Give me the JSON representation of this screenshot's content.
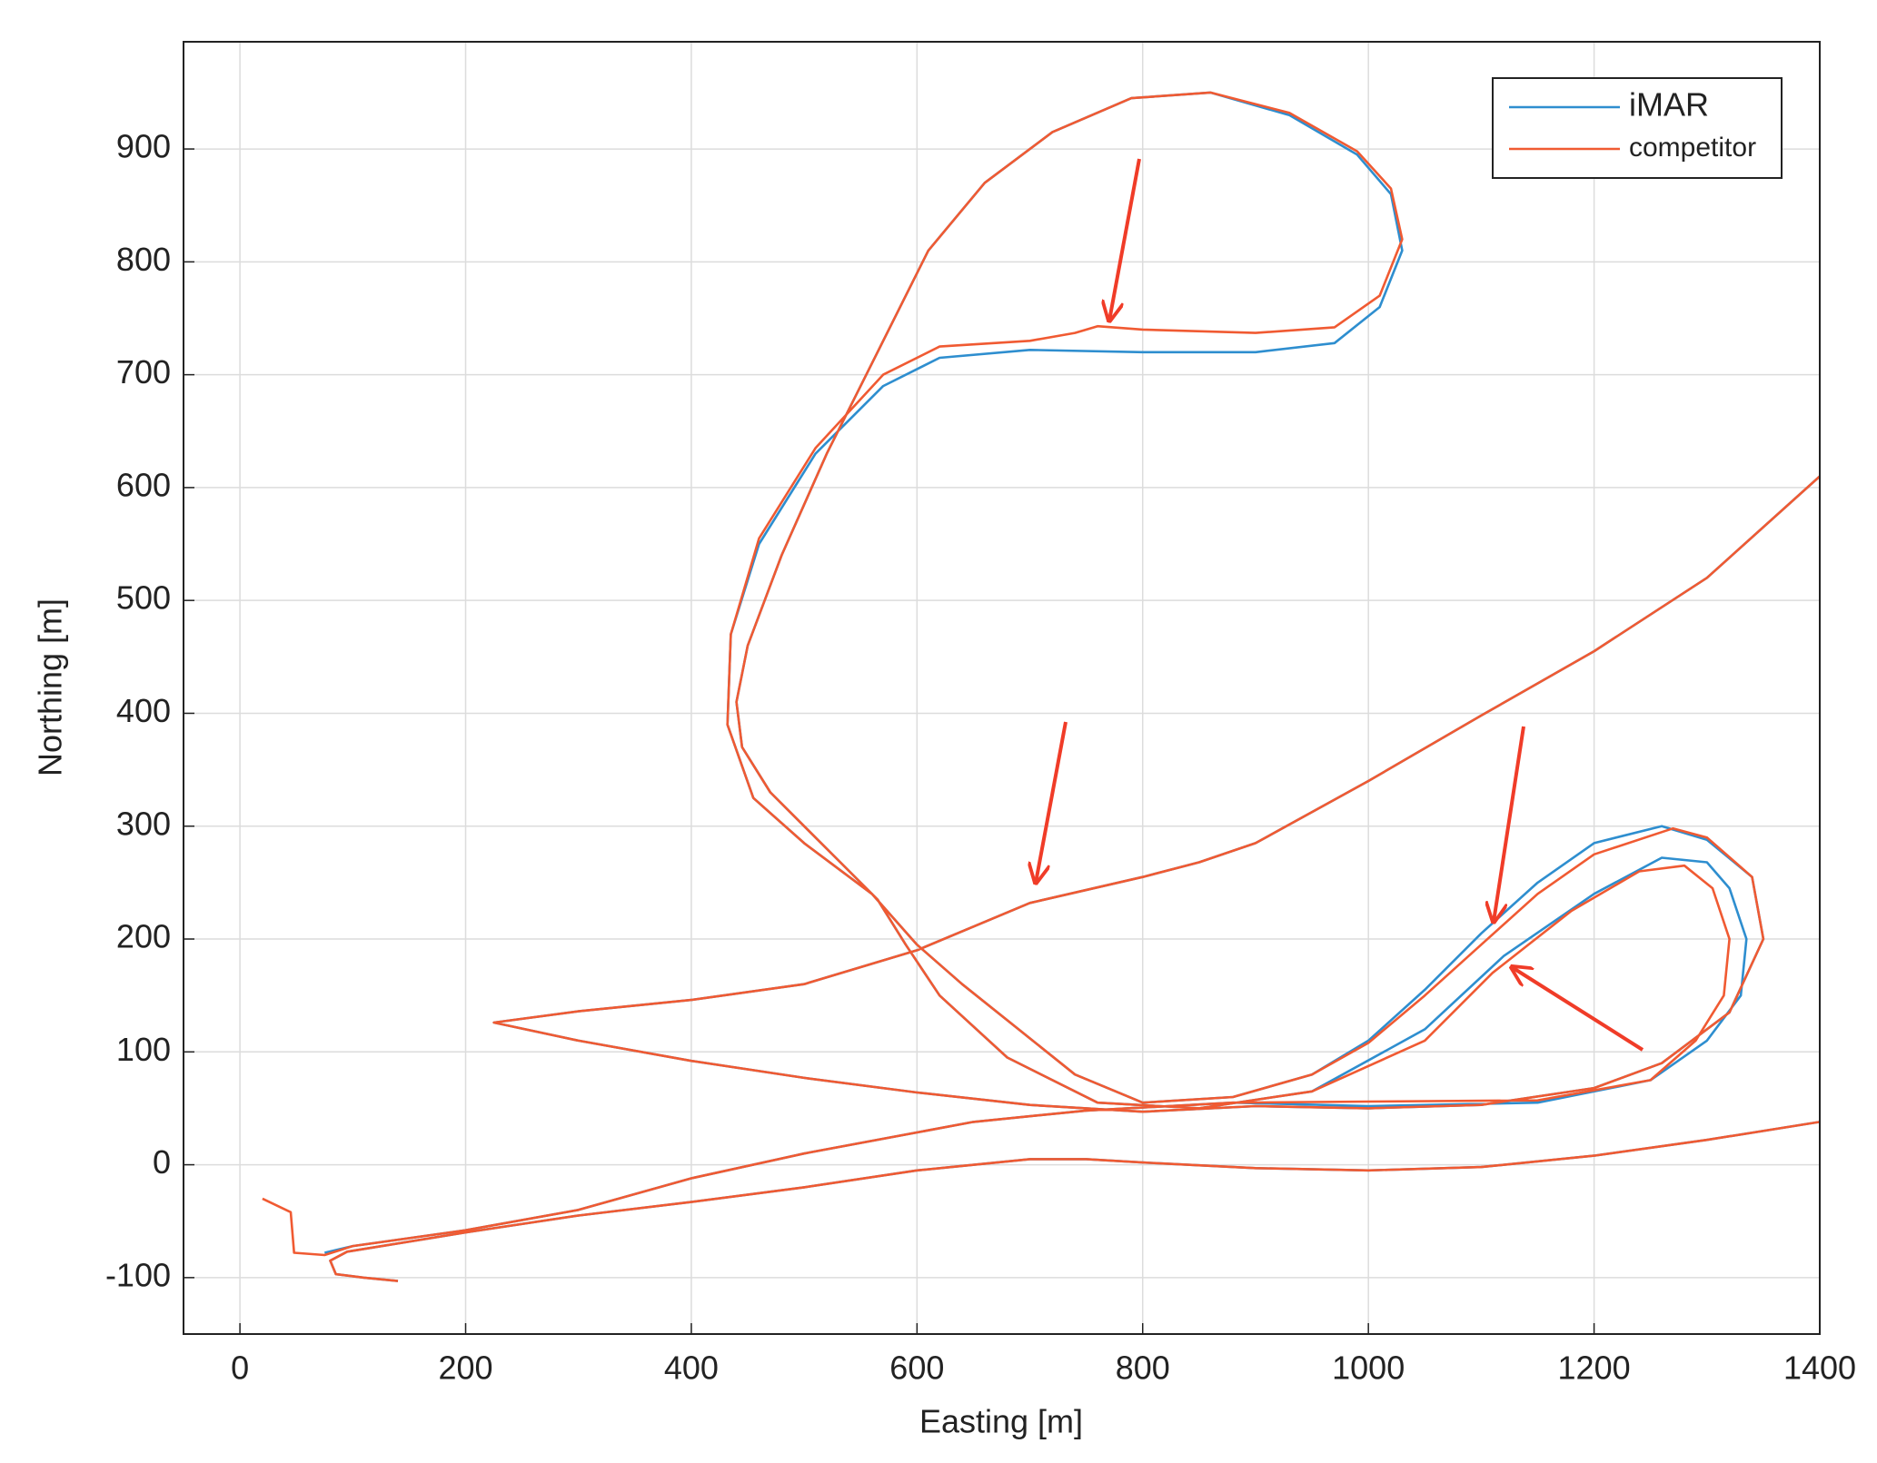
{
  "chart_data": {
    "type": "line",
    "xlabel": "Easting [m]",
    "ylabel": "Northing [m]",
    "xlim": [
      -50,
      1400
    ],
    "ylim": [
      -150,
      995
    ],
    "xticks": [
      0,
      200,
      400,
      600,
      800,
      1000,
      1200,
      1400
    ],
    "yticks": [
      -100,
      0,
      100,
      200,
      300,
      400,
      500,
      600,
      700,
      800,
      900
    ],
    "grid": true,
    "legend": "upper right",
    "series": [
      {
        "name": "iMAR",
        "color": "#2e8ecf",
        "x": [
          140,
          110,
          85,
          80,
          95,
          200,
          300,
          400,
          500,
          600,
          700,
          750,
          800,
          900,
          1000,
          1100,
          1200,
          1300,
          1400,
          null,
          1400,
          1300,
          1200,
          1100,
          1000,
          900,
          850,
          800,
          700,
          600,
          500,
          400,
          300,
          225,
          300,
          400,
          500,
          600,
          700,
          800,
          900,
          1000,
          1100,
          1200,
          1260,
          1320,
          1350,
          1340,
          1300,
          1260,
          1200,
          1150,
          1100,
          1050,
          1000,
          950,
          880,
          800,
          740,
          690,
          640,
          600,
          560,
          500,
          455,
          432,
          435,
          460,
          510,
          570,
          620,
          700,
          800,
          900,
          970,
          1010,
          1030,
          1020,
          990,
          930,
          860,
          790,
          720,
          660,
          610,
          565,
          520,
          480,
          450,
          440,
          445,
          470,
          530,
          565,
          590,
          620,
          680,
          760,
          850,
          950,
          1050,
          1120,
          1200,
          1260,
          1300,
          1320,
          1335,
          1330,
          1300,
          1250,
          1150,
          1000,
          880,
          750,
          650,
          500,
          400,
          300,
          200,
          100,
          75
        ],
        "y": [
          -103,
          -100,
          -97,
          -85,
          -77,
          -60,
          -45,
          -33,
          -20,
          -5,
          5,
          5,
          2,
          -3,
          -5,
          -2,
          8,
          22,
          38,
          null,
          610,
          520,
          455,
          398,
          340,
          285,
          268,
          255,
          232,
          190,
          160,
          146,
          136,
          126,
          110,
          92,
          77,
          64,
          53,
          47,
          52,
          50,
          53,
          68,
          90,
          135,
          200,
          255,
          288,
          300,
          285,
          250,
          205,
          155,
          110,
          80,
          60,
          55,
          80,
          120,
          160,
          195,
          240,
          285,
          325,
          390,
          470,
          550,
          630,
          690,
          715,
          722,
          720,
          720,
          728,
          760,
          810,
          860,
          895,
          930,
          950,
          945,
          915,
          870,
          810,
          720,
          630,
          540,
          460,
          410,
          370,
          330,
          270,
          235,
          195,
          150,
          95,
          55,
          50,
          65,
          120,
          185,
          240,
          272,
          268,
          245,
          200,
          150,
          110,
          75,
          55,
          52,
          55,
          48,
          38,
          10,
          -12,
          -40,
          -58,
          -72,
          -78
        ]
      },
      {
        "name": "competitor",
        "color": "#f05a32",
        "x": [
          140,
          110,
          85,
          80,
          95,
          200,
          300,
          400,
          500,
          600,
          700,
          750,
          800,
          900,
          1000,
          1100,
          1200,
          1300,
          1400,
          null,
          1400,
          1300,
          1200,
          1100,
          1000,
          900,
          850,
          800,
          700,
          600,
          500,
          400,
          300,
          225,
          300,
          400,
          500,
          600,
          700,
          800,
          900,
          1000,
          1100,
          1200,
          1260,
          1320,
          1350,
          1340,
          1300,
          1270,
          1200,
          1150,
          1100,
          1050,
          1000,
          950,
          880,
          800,
          740,
          690,
          640,
          600,
          560,
          500,
          455,
          432,
          435,
          460,
          510,
          570,
          620,
          700,
          740,
          760,
          800,
          900,
          970,
          1010,
          1030,
          1020,
          990,
          930,
          860,
          790,
          720,
          660,
          610,
          565,
          520,
          480,
          450,
          440,
          445,
          470,
          530,
          565,
          590,
          620,
          680,
          760,
          850,
          950,
          1050,
          1110,
          1180,
          1240,
          1280,
          1305,
          1320,
          1315,
          1290,
          1250,
          1150,
          1000,
          880,
          750,
          650,
          500,
          400,
          300,
          200,
          100,
          75,
          48,
          45,
          20
        ],
        "y": [
          -103,
          -100,
          -97,
          -85,
          -77,
          -60,
          -45,
          -33,
          -20,
          -5,
          5,
          5,
          2,
          -3,
          -5,
          -2,
          8,
          22,
          38,
          null,
          610,
          520,
          455,
          398,
          340,
          285,
          268,
          255,
          232,
          190,
          160,
          146,
          136,
          126,
          110,
          92,
          77,
          64,
          53,
          47,
          52,
          50,
          53,
          68,
          90,
          135,
          200,
          255,
          290,
          298,
          275,
          240,
          195,
          150,
          108,
          80,
          60,
          55,
          80,
          120,
          160,
          195,
          240,
          285,
          325,
          390,
          470,
          555,
          635,
          700,
          725,
          730,
          737,
          743,
          740,
          737,
          742,
          770,
          820,
          865,
          898,
          932,
          950,
          945,
          915,
          870,
          810,
          720,
          630,
          540,
          460,
          410,
          370,
          330,
          270,
          235,
          195,
          150,
          95,
          55,
          50,
          65,
          110,
          170,
          225,
          260,
          265,
          245,
          200,
          150,
          110,
          75,
          57,
          56,
          55,
          48,
          38,
          10,
          -12,
          -40,
          -58,
          -72,
          -80,
          -78,
          -42,
          -30
        ]
      }
    ]
  }
}
